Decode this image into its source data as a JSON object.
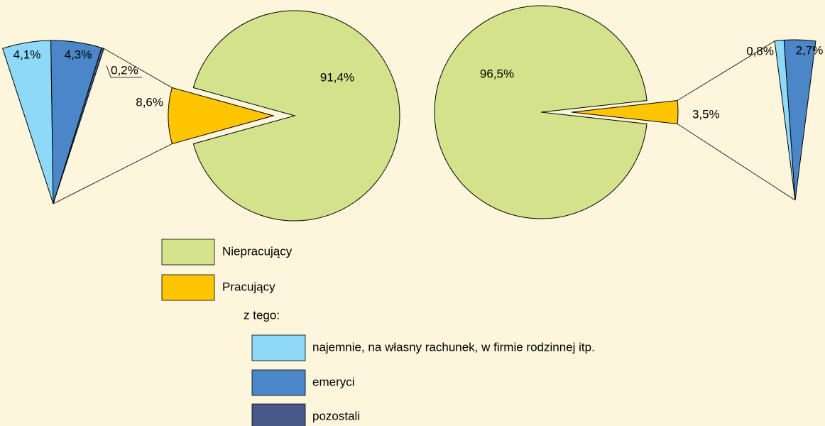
{
  "chart_data": [
    {
      "type": "pie",
      "categories": [
        "Niepracujący",
        "Pracujący"
      ],
      "values": [
        91.4,
        8.6
      ],
      "value_labels": [
        "91,4%",
        "8,6%"
      ],
      "colors": [
        "#d4e28b",
        "#ffc600"
      ],
      "legend_note": "z tego:",
      "breakdown": {
        "categories": [
          "najemnie, na własny rachunek, w firmie rodzinnej itp.",
          "emeryci",
          "pozostali"
        ],
        "values": [
          4.1,
          4.3,
          0.2
        ],
        "value_labels": [
          "4,1%",
          "4,3%",
          "0,2%"
        ],
        "colors": [
          "#8ed8f8",
          "#4a86c8",
          "#485888"
        ]
      }
    },
    {
      "type": "pie",
      "categories": [
        "Niepracujący",
        "Pracujący"
      ],
      "values": [
        96.5,
        3.5
      ],
      "value_labels": [
        "96,5%",
        "3,5%"
      ],
      "colors": [
        "#d4e28b",
        "#ffc600"
      ],
      "breakdown": {
        "categories": [
          "najemnie, na własny rachunek, w firmie rodzinnej itp.",
          "emeryci",
          "pozostali"
        ],
        "values": [
          0.8,
          2.7,
          null
        ],
        "value_labels": [
          "0,8%",
          "2,7%",
          null
        ],
        "colors": [
          "#8ed8f8",
          "#4a86c8",
          "#485888"
        ]
      }
    }
  ]
}
